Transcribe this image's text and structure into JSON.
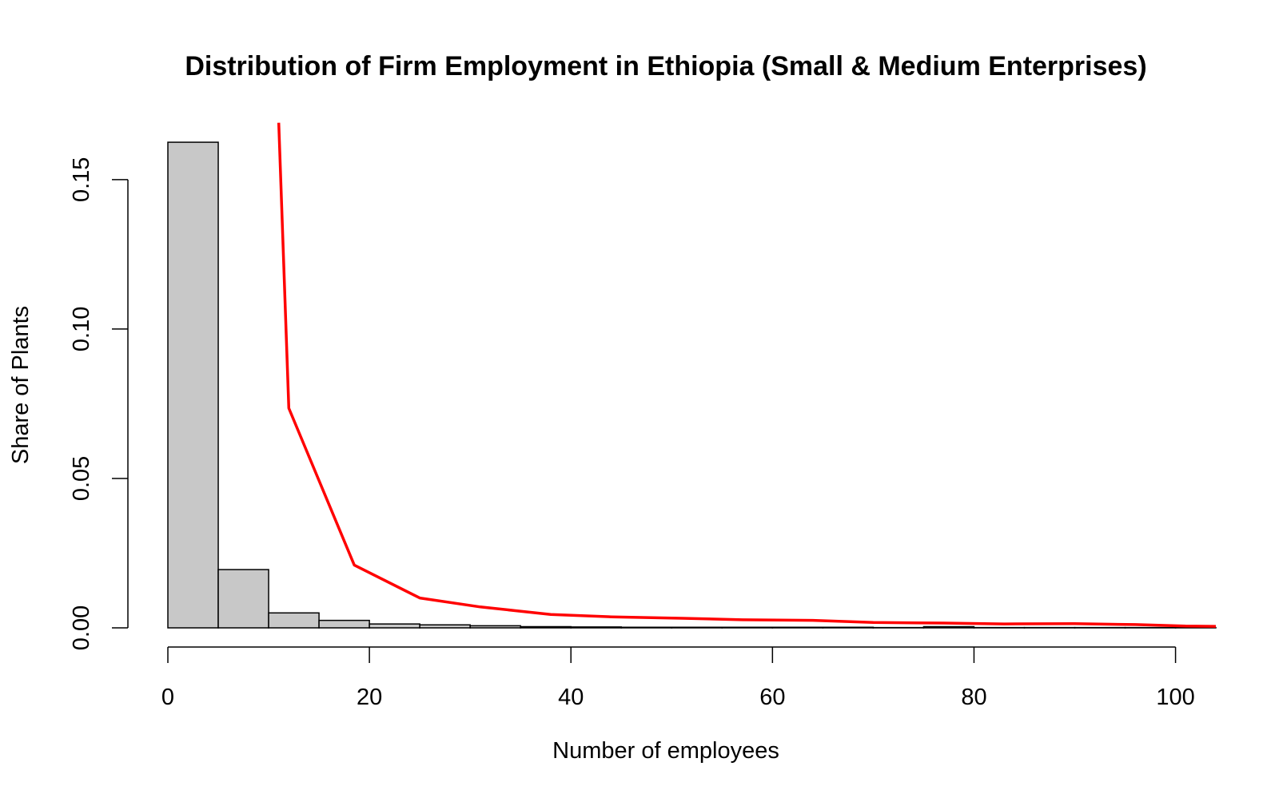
{
  "chart_data": {
    "type": "bar",
    "title": "Distribution of Firm Employment in Ethiopia (Small & Medium Enterprises)",
    "xlabel": "Number of employees",
    "ylabel": "Share of Plants",
    "xlim": [
      0,
      104
    ],
    "ylim": [
      0,
      0.17
    ],
    "x_ticks": [
      0,
      20,
      40,
      60,
      80,
      100
    ],
    "x_tick_labels": [
      "0",
      "20",
      "40",
      "60",
      "80",
      "100"
    ],
    "y_ticks": [
      0,
      0.05,
      0.1,
      0.15
    ],
    "y_tick_labels": [
      "0.00",
      "0.05",
      "0.10",
      "0.15"
    ],
    "grid": false,
    "bars": {
      "bin_edges": [
        0,
        5,
        10,
        15,
        20,
        25,
        30,
        35,
        40,
        45,
        50,
        55,
        60,
        65,
        70,
        75,
        80,
        85,
        90,
        95,
        100,
        104
      ],
      "values": [
        0.1625,
        0.0195,
        0.005,
        0.0025,
        0.0013,
        0.001,
        0.0007,
        0.0004,
        0.0003,
        0.0002,
        0.0002,
        0.0002,
        0.0002,
        0.0002,
        0.0001,
        0.0004,
        0.0001,
        0.0001,
        0.0001,
        0.0001,
        0.0001
      ],
      "fill": "#c8c8c8",
      "stroke": "#000000"
    },
    "series": [
      {
        "type": "line",
        "color": "#ff0000",
        "x": [
          11,
          12,
          18.5,
          25,
          31,
          38,
          44,
          51,
          57,
          64,
          70,
          77,
          83,
          90,
          96,
          101,
          104
        ],
        "y": [
          0.169,
          0.0735,
          0.021,
          0.01,
          0.007,
          0.0045,
          0.0037,
          0.0032,
          0.0027,
          0.0025,
          0.0018,
          0.0016,
          0.0013,
          0.0014,
          0.0011,
          0.0006,
          0.0005
        ]
      }
    ]
  }
}
